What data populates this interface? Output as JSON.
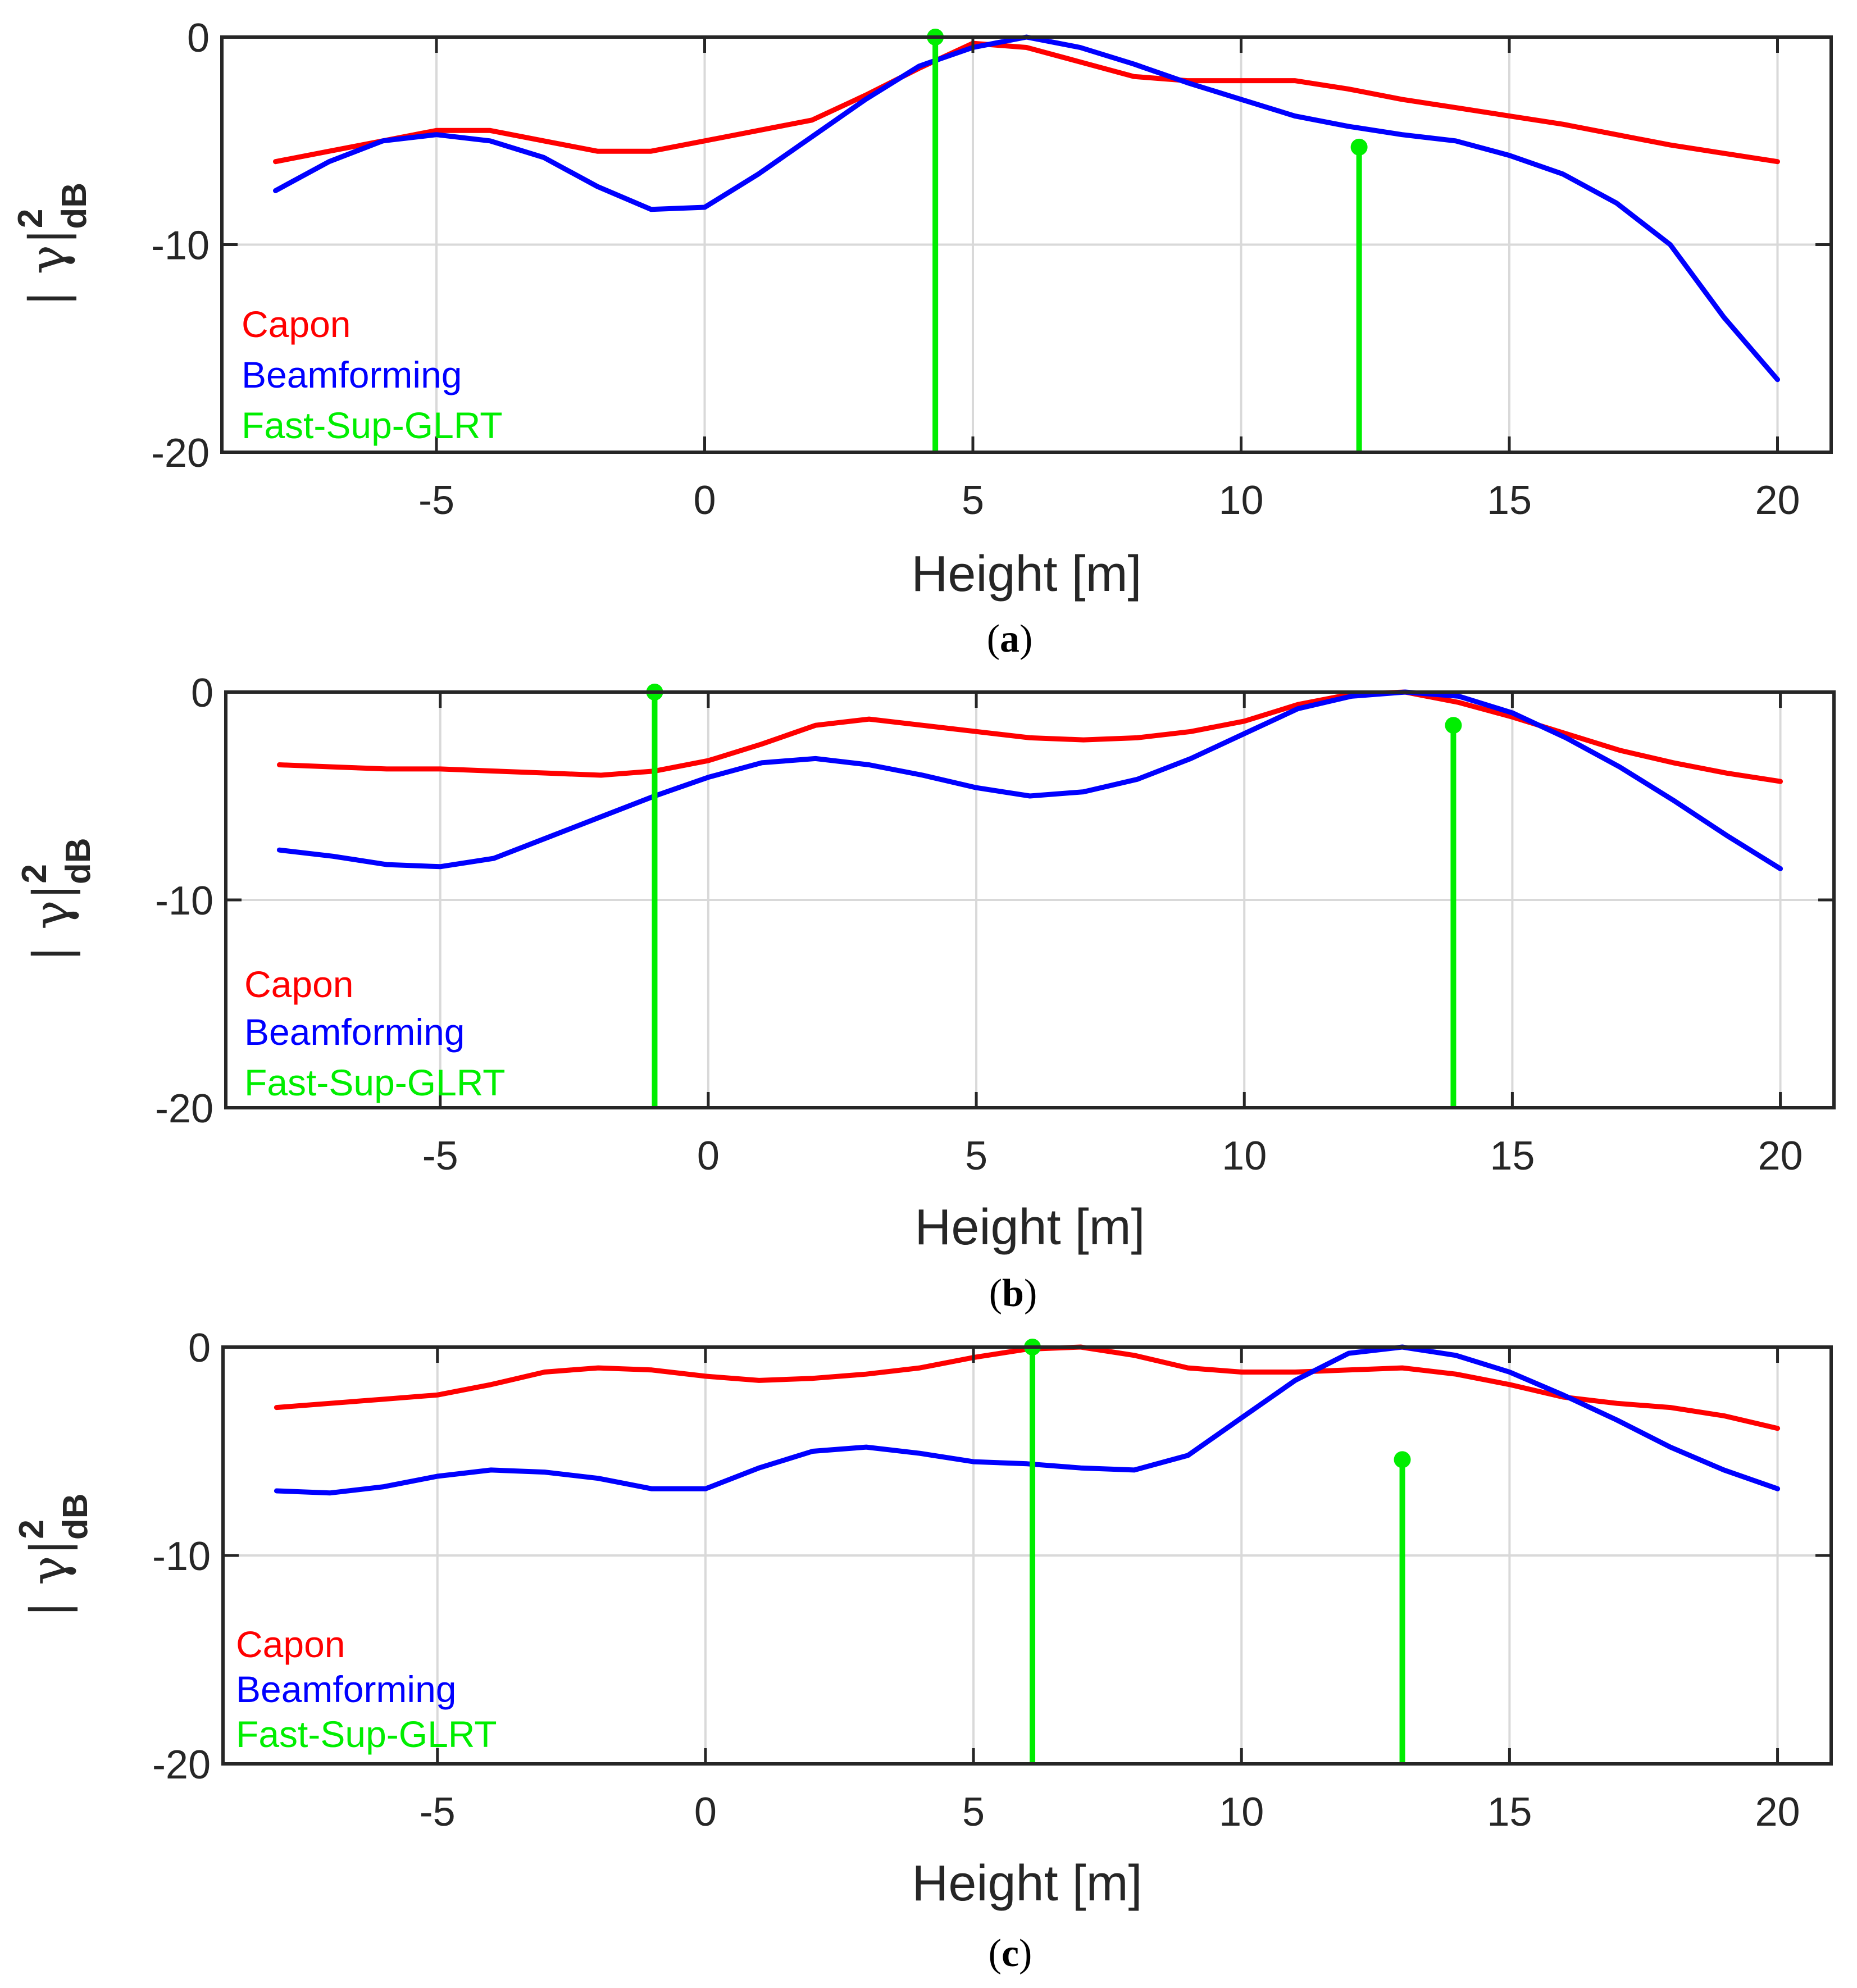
{
  "colors": {
    "capon": "#ff0000",
    "beamforming": "#0000ff",
    "glrt": "#00ee00",
    "axes": "#262626",
    "grid": "#d9d9d9"
  },
  "y_axis_label": {
    "prefix": "| γ|",
    "superscript": "2",
    "subscript": "dB"
  },
  "chart_data": [
    {
      "type": "line",
      "caption": {
        "letter": "a"
      },
      "xlabel": "Height [m]",
      "xlim": [
        -9,
        21
      ],
      "ylim": [
        -20,
        0
      ],
      "xticks": [
        -5,
        0,
        5,
        10,
        15,
        20
      ],
      "yticks": [
        0,
        -10,
        -20
      ],
      "grid": true,
      "legend_placement": "left",
      "series": [
        {
          "name": "Capon",
          "kind": "line",
          "x": [
            -8,
            -7,
            -6,
            -5,
            -4,
            -3,
            -2,
            -1,
            0,
            1,
            2,
            3,
            4,
            5,
            6,
            7,
            8,
            9,
            10,
            11,
            12,
            13,
            14,
            15,
            16,
            17,
            18,
            19,
            20
          ],
          "y": [
            -6.0,
            -5.5,
            -5.0,
            -4.5,
            -4.5,
            -5.0,
            -5.5,
            -5.5,
            -5.0,
            -4.5,
            -4.0,
            -2.8,
            -1.5,
            -0.3,
            -0.5,
            -1.2,
            -1.9,
            -2.1,
            -2.1,
            -2.1,
            -2.5,
            -3.0,
            -3.4,
            -3.8,
            -4.2,
            -4.7,
            -5.2,
            -5.6,
            -6.0
          ]
        },
        {
          "name": "Beamforming",
          "kind": "line",
          "x": [
            -8,
            -7,
            -6,
            -5,
            -4,
            -3,
            -2,
            -1,
            0,
            1,
            2,
            3,
            4,
            5,
            6,
            7,
            8,
            9,
            10,
            11,
            12,
            13,
            14,
            15,
            16,
            17,
            18,
            19,
            20
          ],
          "y": [
            -7.4,
            -6.0,
            -5.0,
            -4.7,
            -5.0,
            -5.8,
            -7.2,
            -8.3,
            -8.2,
            -6.6,
            -4.8,
            -3.0,
            -1.4,
            -0.5,
            0.0,
            -0.5,
            -1.3,
            -2.2,
            -3.0,
            -3.8,
            -4.3,
            -4.7,
            -5.0,
            -5.7,
            -6.6,
            -8.0,
            -10.0,
            -13.5,
            -16.5
          ]
        },
        {
          "name": "Fast-Sup-GLRT",
          "kind": "stem",
          "x": [
            4.3,
            12.2
          ],
          "y": [
            0.0,
            -5.3
          ]
        }
      ]
    },
    {
      "type": "line",
      "caption": {
        "letter": "b"
      },
      "xlabel": "Height [m]",
      "xlim": [
        -9,
        21
      ],
      "ylim": [
        -20,
        0
      ],
      "xticks": [
        -5,
        0,
        5,
        10,
        15,
        20
      ],
      "yticks": [
        0,
        -10,
        -20
      ],
      "grid": true,
      "legend_placement": "bottom-left",
      "series": [
        {
          "name": "Capon",
          "kind": "line",
          "x": [
            -8,
            -7,
            -6,
            -5,
            -4,
            -3,
            -2,
            -1,
            0,
            1,
            2,
            3,
            4,
            5,
            6,
            7,
            8,
            9,
            10,
            11,
            12,
            13,
            14,
            15,
            16,
            17,
            18,
            19,
            20
          ],
          "y": [
            -3.5,
            -3.6,
            -3.7,
            -3.7,
            -3.8,
            -3.9,
            -4.0,
            -3.8,
            -3.3,
            -2.5,
            -1.6,
            -1.3,
            -1.6,
            -1.9,
            -2.2,
            -2.3,
            -2.2,
            -1.9,
            -1.4,
            -0.6,
            -0.1,
            0.0,
            -0.5,
            -1.2,
            -2.0,
            -2.8,
            -3.4,
            -3.9,
            -4.3
          ]
        },
        {
          "name": "Beamforming",
          "kind": "line",
          "x": [
            -8,
            -7,
            -6,
            -5,
            -4,
            -3,
            -2,
            -1,
            0,
            1,
            2,
            3,
            4,
            5,
            6,
            7,
            8,
            9,
            10,
            11,
            12,
            13,
            14,
            15,
            16,
            17,
            18,
            19,
            20
          ],
          "y": [
            -7.6,
            -7.9,
            -8.3,
            -8.4,
            -8.0,
            -7.0,
            -6.0,
            -5.0,
            -4.1,
            -3.4,
            -3.2,
            -3.5,
            -4.0,
            -4.6,
            -5.0,
            -4.8,
            -4.2,
            -3.2,
            -2.0,
            -0.8,
            -0.2,
            0.0,
            -0.2,
            -1.0,
            -2.2,
            -3.6,
            -5.2,
            -6.9,
            -8.5
          ]
        },
        {
          "name": "Fast-Sup-GLRT",
          "kind": "stem",
          "x": [
            -1.0,
            13.9
          ],
          "y": [
            0.0,
            -1.6
          ]
        }
      ]
    },
    {
      "type": "line",
      "caption": {
        "letter": "c"
      },
      "xlabel": "Height [m]",
      "xlim": [
        -9,
        21
      ],
      "ylim": [
        -20,
        0
      ],
      "xticks": [
        -5,
        0,
        5,
        10,
        15,
        20
      ],
      "yticks": [
        0,
        -10,
        -20
      ],
      "grid": true,
      "legend_placement": "bottom-left",
      "series": [
        {
          "name": "Capon",
          "kind": "line",
          "x": [
            -8,
            -7,
            -6,
            -5,
            -4,
            -3,
            -2,
            -1,
            0,
            1,
            2,
            3,
            4,
            5,
            6,
            7,
            8,
            9,
            10,
            11,
            12,
            13,
            14,
            15,
            16,
            17,
            18,
            19,
            20
          ],
          "y": [
            -2.9,
            -2.7,
            -2.5,
            -2.3,
            -1.8,
            -1.2,
            -1.0,
            -1.1,
            -1.4,
            -1.6,
            -1.5,
            -1.3,
            -1.0,
            -0.5,
            -0.1,
            0.0,
            -0.4,
            -1.0,
            -1.2,
            -1.2,
            -1.1,
            -1.0,
            -1.3,
            -1.8,
            -2.4,
            -2.7,
            -2.9,
            -3.3,
            -3.9
          ]
        },
        {
          "name": "Beamforming",
          "kind": "line",
          "x": [
            -8,
            -7,
            -6,
            -5,
            -4,
            -3,
            -2,
            -1,
            0,
            1,
            2,
            3,
            4,
            5,
            6,
            7,
            8,
            9,
            10,
            11,
            12,
            13,
            14,
            15,
            16,
            17,
            18,
            19,
            20
          ],
          "y": [
            -6.9,
            -7.0,
            -6.7,
            -6.2,
            -5.9,
            -6.0,
            -6.3,
            -6.8,
            -6.8,
            -5.8,
            -5.0,
            -4.8,
            -5.1,
            -5.5,
            -5.6,
            -5.8,
            -5.9,
            -5.2,
            -3.4,
            -1.6,
            -0.3,
            0.0,
            -0.4,
            -1.2,
            -2.3,
            -3.5,
            -4.8,
            -5.9,
            -6.8
          ]
        },
        {
          "name": "Fast-Sup-GLRT",
          "kind": "stem",
          "x": [
            6.1,
            13.0
          ],
          "y": [
            0.0,
            -5.4
          ]
        }
      ]
    }
  ]
}
